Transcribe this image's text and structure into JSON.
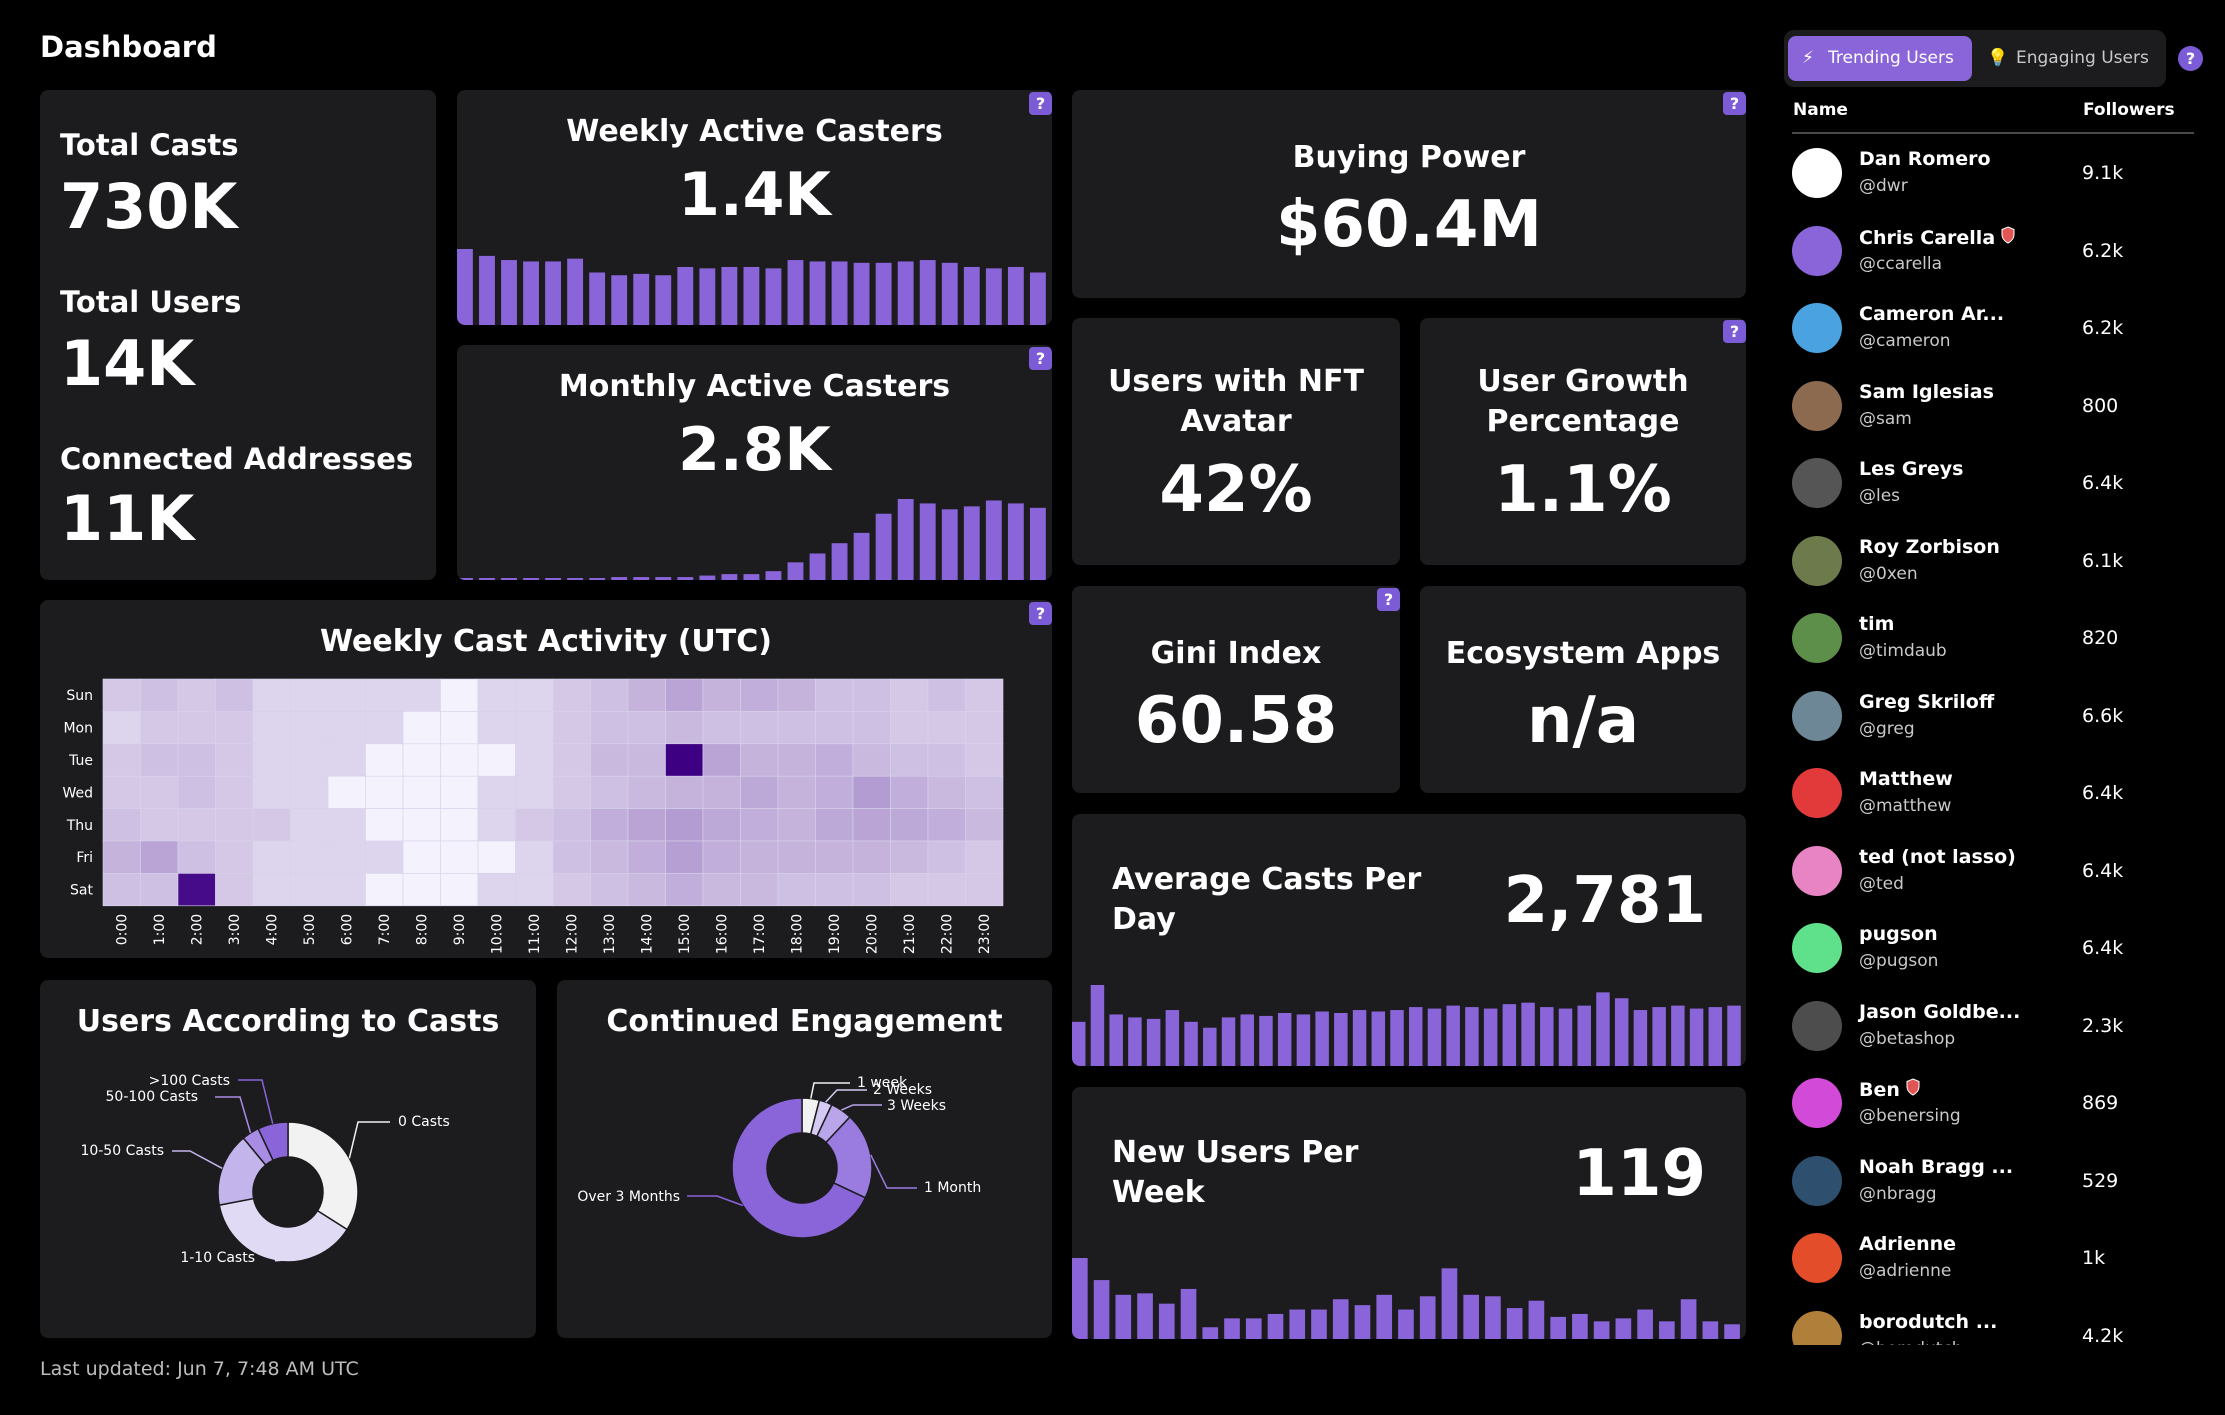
{
  "page": {
    "title": "Dashboard",
    "last_updated": "Last updated: Jun 7, 7:48 AM UTC"
  },
  "totals": {
    "casts_label": "Total Casts",
    "casts_value": "730K",
    "users_label": "Total Users",
    "users_value": "14K",
    "addresses_label": "Connected Addresses",
    "addresses_value": "11K"
  },
  "help_label": "?",
  "weekly_active": {
    "title": "Weekly Active Casters",
    "value": "1.4K",
    "bars": [
      55,
      50,
      47,
      46,
      46,
      48,
      38,
      36,
      37,
      36,
      42,
      41,
      42,
      42,
      41,
      47,
      46,
      46,
      45,
      45,
      46,
      47,
      45,
      42,
      41,
      42,
      38
    ]
  },
  "monthly_active": {
    "title": "Monthly Active Casters",
    "value": "2.8K",
    "bars": [
      0,
      0,
      0,
      0,
      1,
      1,
      1,
      2,
      2,
      2,
      2,
      3,
      4,
      4,
      6,
      12,
      18,
      25,
      32,
      45,
      55,
      52,
      48,
      50,
      54,
      52,
      49
    ]
  },
  "buying_power": {
    "title": "Buying Power",
    "value": "$60.4M"
  },
  "nft_avatar": {
    "title_line1": "Users with NFT",
    "title_line2": "Avatar",
    "value": "42%"
  },
  "user_growth": {
    "title_line1": "User Growth",
    "title_line2": "Percentage",
    "value": "1.1%"
  },
  "gini": {
    "title": "Gini Index",
    "value": "60.58"
  },
  "ecosystem": {
    "title": "Ecosystem Apps",
    "value": "n/a"
  },
  "avg_casts": {
    "title_line1": "Average Casts Per",
    "title_line2": "Day",
    "value": "2,781",
    "bars": [
      30,
      55,
      35,
      33,
      32,
      38,
      30,
      26,
      33,
      35,
      34,
      36,
      35,
      37,
      36,
      38,
      37,
      38,
      40,
      39,
      41,
      40,
      39,
      42,
      43,
      40,
      39,
      41,
      50,
      46,
      38,
      40,
      41,
      39,
      40,
      41
    ]
  },
  "new_users": {
    "title_line1": "New Users Per",
    "title_line2": "Week",
    "value": "119",
    "bars": [
      55,
      40,
      30,
      31,
      24,
      34,
      8,
      14,
      14,
      17,
      20,
      20,
      27,
      23,
      30,
      20,
      29,
      48,
      30,
      29,
      21,
      26,
      15,
      17,
      12,
      14,
      20,
      12,
      27,
      12,
      10
    ]
  },
  "heatmap": {
    "title": "Weekly Cast Activity (UTC)",
    "days": [
      "Sun",
      "Mon",
      "Tue",
      "Wed",
      "Thu",
      "Fri",
      "Sat"
    ],
    "hours": [
      "0:00",
      "1:00",
      "2:00",
      "3:00",
      "4:00",
      "5:00",
      "6:00",
      "7:00",
      "8:00",
      "9:00",
      "10:00",
      "11:00",
      "12:00",
      "13:00",
      "14:00",
      "15:00",
      "16:00",
      "17:00",
      "18:00",
      "19:00",
      "20:00",
      "21:00",
      "22:00",
      "23:00"
    ],
    "values": [
      [
        2,
        3,
        2,
        3,
        1,
        1,
        1,
        1,
        1,
        0,
        1,
        1,
        2,
        3,
        5,
        8,
        5,
        6,
        5,
        3,
        3,
        2,
        3,
        2
      ],
      [
        1,
        2,
        2,
        2,
        1,
        1,
        1,
        1,
        0,
        0,
        1,
        1,
        2,
        3,
        3,
        4,
        3,
        3,
        3,
        3,
        3,
        2,
        2,
        2
      ],
      [
        2,
        3,
        3,
        2,
        1,
        1,
        1,
        0,
        0,
        0,
        0,
        1,
        2,
        4,
        4,
        100,
        8,
        5,
        5,
        6,
        4,
        3,
        3,
        2
      ],
      [
        2,
        2,
        3,
        2,
        1,
        1,
        0,
        0,
        0,
        0,
        1,
        1,
        2,
        3,
        4,
        5,
        5,
        7,
        5,
        6,
        10,
        6,
        4,
        3
      ],
      [
        3,
        2,
        2,
        2,
        2,
        1,
        1,
        0,
        0,
        0,
        1,
        2,
        3,
        6,
        8,
        10,
        7,
        6,
        5,
        7,
        8,
        7,
        6,
        4
      ],
      [
        5,
        8,
        3,
        2,
        1,
        1,
        1,
        1,
        0,
        0,
        0,
        1,
        3,
        4,
        6,
        9,
        6,
        5,
        5,
        5,
        5,
        4,
        3,
        2
      ],
      [
        3,
        3,
        90,
        2,
        1,
        1,
        1,
        0,
        0,
        0,
        1,
        1,
        2,
        3,
        4,
        6,
        4,
        4,
        3,
        3,
        3,
        2,
        2,
        2
      ]
    ]
  },
  "users_by_casts": {
    "title": "Users According to Casts",
    "slices": [
      {
        "label": "0 Casts",
        "value": 34,
        "color": "#f2f2f2"
      },
      {
        "label": "1-10 Casts",
        "value": 38,
        "color": "#e1daf5"
      },
      {
        "label": "10-50 Casts",
        "value": 17,
        "color": "#c4b4ec"
      },
      {
        "label": "50-100 Casts",
        "value": 4,
        "color": "#a98ce3"
      },
      {
        "label": ">100 Casts",
        "value": 7,
        "color": "#8a64d9"
      }
    ]
  },
  "engagement": {
    "title": "Continued Engagement",
    "slices": [
      {
        "label": "1 week",
        "value": 4,
        "color": "#f2f2f2"
      },
      {
        "label": "2 Weeks",
        "value": 3,
        "color": "#d5cbf2"
      },
      {
        "label": "3 Weeks",
        "value": 5,
        "color": "#b9a5e9"
      },
      {
        "label": "1 Month",
        "value": 20,
        "color": "#9a7be0"
      },
      {
        "label": "Over 3 Months",
        "value": 68,
        "color": "#8a64d9"
      }
    ]
  },
  "panel": {
    "tab_trending": "Trending Users",
    "tab_engaging": "Engaging Users",
    "help": "?",
    "col_name": "Name",
    "col_followers": "Followers",
    "users": [
      {
        "name": "Dan Romero",
        "handle": "@dwr",
        "followers": "9.1k",
        "color": "#ffffff",
        "shield": false
      },
      {
        "name": "Chris Carella",
        "handle": "@ccarella",
        "followers": "6.2k",
        "color": "#8a64d9",
        "shield": true
      },
      {
        "name": "Cameron Ar...",
        "handle": "@cameron",
        "followers": "6.2k",
        "color": "#4aa3e0",
        "shield": false
      },
      {
        "name": "Sam Iglesias",
        "handle": "@sam",
        "followers": "800",
        "color": "#8c6a4f",
        "shield": false
      },
      {
        "name": "Les Greys",
        "handle": "@les",
        "followers": "6.4k",
        "color": "#555555",
        "shield": false
      },
      {
        "name": "Roy Zorbison",
        "handle": "@0xen",
        "followers": "6.1k",
        "color": "#6d7a4c",
        "shield": false
      },
      {
        "name": "tim",
        "handle": "@timdaub",
        "followers": "820",
        "color": "#5e8f4a",
        "shield": false
      },
      {
        "name": "Greg Skriloff",
        "handle": "@greg",
        "followers": "6.6k",
        "color": "#6e8796",
        "shield": false
      },
      {
        "name": "Matthew",
        "handle": "@matthew",
        "followers": "6.4k",
        "color": "#e23a3a",
        "shield": false
      },
      {
        "name": "ted (not lasso)",
        "handle": "@ted",
        "followers": "6.4k",
        "color": "#e884c4",
        "shield": false
      },
      {
        "name": "pugson",
        "handle": "@pugson",
        "followers": "6.4k",
        "color": "#5fe08a",
        "shield": false
      },
      {
        "name": "Jason Goldbe...",
        "handle": "@betashop",
        "followers": "2.3k",
        "color": "#4d4d4d",
        "shield": false
      },
      {
        "name": "Ben",
        "handle": "@benersing",
        "followers": "869",
        "color": "#d24ad8",
        "shield": true
      },
      {
        "name": "Noah Bragg ...",
        "handle": "@nbragg",
        "followers": "529",
        "color": "#2e4f6d",
        "shield": false
      },
      {
        "name": "Adrienne",
        "handle": "@adrienne",
        "followers": "1k",
        "color": "#e34d2a",
        "shield": false
      },
      {
        "name": "borodutch ...",
        "handle": "@borodutch",
        "followers": "4.2k",
        "color": "#b0803a",
        "shield": false
      }
    ]
  }
}
